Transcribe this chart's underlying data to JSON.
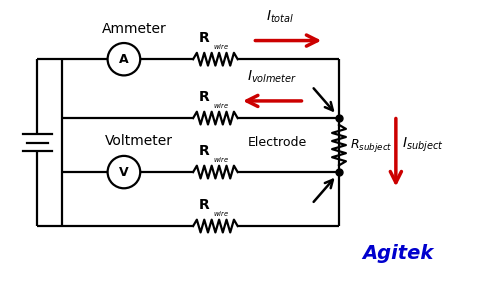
{
  "bg_color": "#ffffff",
  "line_color": "#000000",
  "red_color": "#cc0000",
  "blue_color": "#0000cd",
  "fig_width": 5.0,
  "fig_height": 3.0,
  "dpi": 100,
  "agitek_text": "Agitek",
  "ammeter_label": "A",
  "voltmeter_label": "V",
  "ammeter_text": "Ammeter",
  "voltmeter_text": "Voltmeter",
  "electrode_text": "Electrode"
}
